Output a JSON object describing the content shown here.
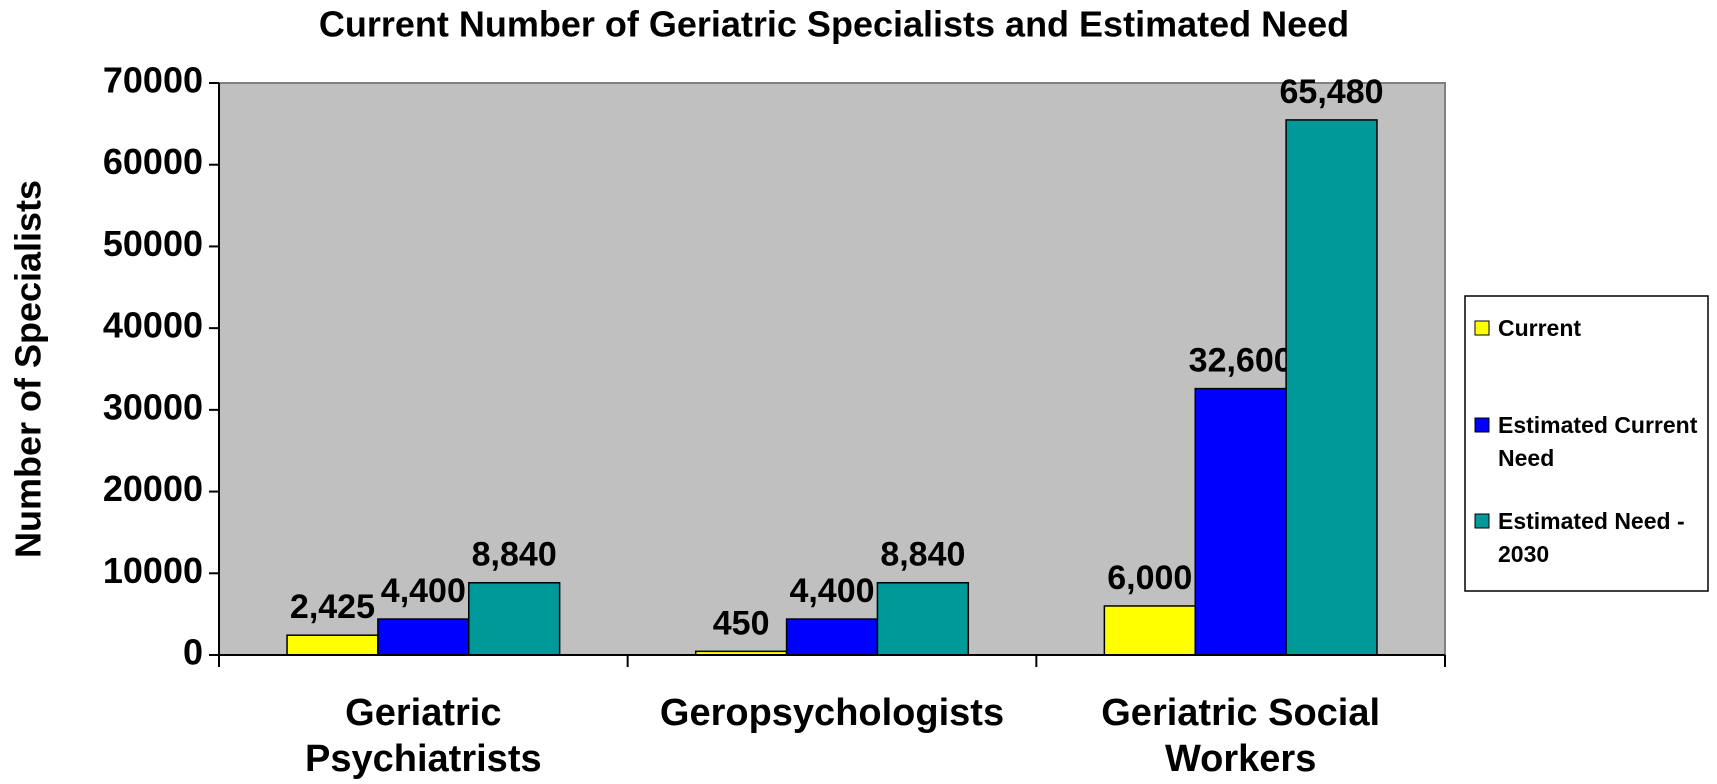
{
  "chart_data": {
    "type": "bar",
    "title": "Current Number of Geriatric Specialists and Estimated Need",
    "y_label": "Number of Specialists",
    "categories": [
      "Geriatric Psychiatrists",
      "Geropsychologists",
      "Geriatric Social Workers"
    ],
    "series": [
      {
        "name": "Current",
        "color": "#ffff00",
        "values": [
          2425,
          450,
          6000
        ],
        "value_labels": [
          "2,425",
          "450",
          "6,000"
        ]
      },
      {
        "name": "Estimated Current Need",
        "color": "#0000ff",
        "values": [
          4400,
          4400,
          32600
        ],
        "value_labels": [
          "4,400",
          "4,400",
          "32,600"
        ]
      },
      {
        "name": "Estimated Need - 2030",
        "color": "#009999",
        "values": [
          8840,
          8840,
          65480
        ],
        "value_labels": [
          "8,840",
          "8,840",
          "65,480"
        ]
      }
    ],
    "ylim": [
      0,
      70000
    ],
    "yticks": [
      0,
      10000,
      20000,
      30000,
      40000,
      50000,
      60000,
      70000
    ],
    "grid": false,
    "plot_background": "#c0c0c0",
    "legend": "right"
  }
}
